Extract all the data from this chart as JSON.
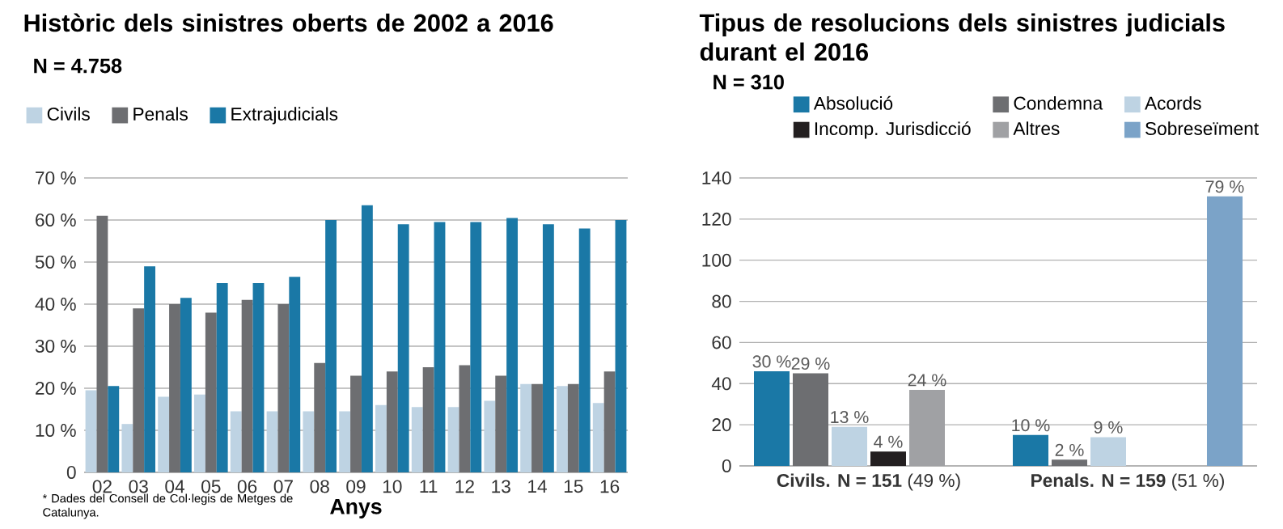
{
  "chart_data": [
    {
      "type": "bar",
      "title": "Històric dels sinistres oberts de 2002 a 2016",
      "subtitle": "N = 4.758",
      "xlabel": "Anys",
      "annotations": [
        "* Dades del Consell de Col·legis de Metges de Catalunya."
      ],
      "categories": [
        "02",
        "03",
        "04",
        "05",
        "06",
        "07",
        "08",
        "09",
        "10",
        "11",
        "12",
        "13",
        "14",
        "15",
        "16"
      ],
      "series": [
        {
          "name": "Civils",
          "color": "#bed3e3",
          "values": [
            19.5,
            11.5,
            18,
            18.5,
            14.5,
            14.5,
            14.5,
            14.5,
            16,
            15.5,
            15.5,
            17,
            21,
            20.5,
            16.5
          ]
        },
        {
          "name": "Penals",
          "color": "#6d6e71",
          "values": [
            61,
            39,
            40,
            38,
            41,
            40,
            26,
            23,
            24,
            25,
            25.5,
            23,
            21,
            21,
            24
          ]
        },
        {
          "name": "Extrajudicials",
          "color": "#1a78a6",
          "values": [
            20.5,
            49,
            41.5,
            45,
            45,
            46.5,
            60,
            63.5,
            59,
            59.5,
            59.5,
            60.5,
            59,
            58,
            60
          ]
        }
      ],
      "ylim": [
        0,
        70
      ],
      "yticks": [
        0,
        {
          "value": 10,
          "label": "10 %"
        },
        {
          "value": 20,
          "label": "20 %"
        },
        {
          "value": 30,
          "label": "30 %"
        },
        {
          "value": 40,
          "label": "40 %"
        },
        {
          "value": 50,
          "label": "50 %"
        },
        {
          "value": 60,
          "label": "60 %"
        },
        {
          "value": 70,
          "label": "70 %"
        }
      ],
      "grid": "y",
      "legend": "top left"
    },
    {
      "type": "bar",
      "title": "Tipus de resolucions dels sinistres judicials durant el 2016",
      "subtitle": "N = 310",
      "categories": [
        "**Civils. N = 151** (49 %)",
        "**Penals. N = 159** (51 %)"
      ],
      "series": [
        {
          "name": "Absolució",
          "color": "#1a78a6",
          "values": [
            46,
            15
          ]
        },
        {
          "name": "Condemna",
          "color": "#6d6e71",
          "values": [
            45,
            3
          ]
        },
        {
          "name": "Acords",
          "color": "#bed3e3",
          "values": [
            19,
            14
          ]
        },
        {
          "name": "Incomp. Jurisdicció",
          "color": "#231f20",
          "values": [
            7,
            null
          ]
        },
        {
          "name": "Altres",
          "color": "#a0a1a4",
          "values": [
            37,
            null
          ]
        },
        {
          "name": "Sobreseïment",
          "color": "#7ba3c8",
          "values": [
            null,
            131
          ]
        }
      ],
      "annotations": [
        "30 %",
        "29 %",
        "13 %",
        "4 %",
        "24 %",
        "10 %",
        "2 %",
        "9 %",
        "79 %"
      ],
      "ylim": [
        0,
        140
      ],
      "yticks": [
        0,
        20,
        40,
        60,
        80,
        100,
        120,
        140
      ],
      "grid": "y",
      "legend": "top right"
    }
  ]
}
